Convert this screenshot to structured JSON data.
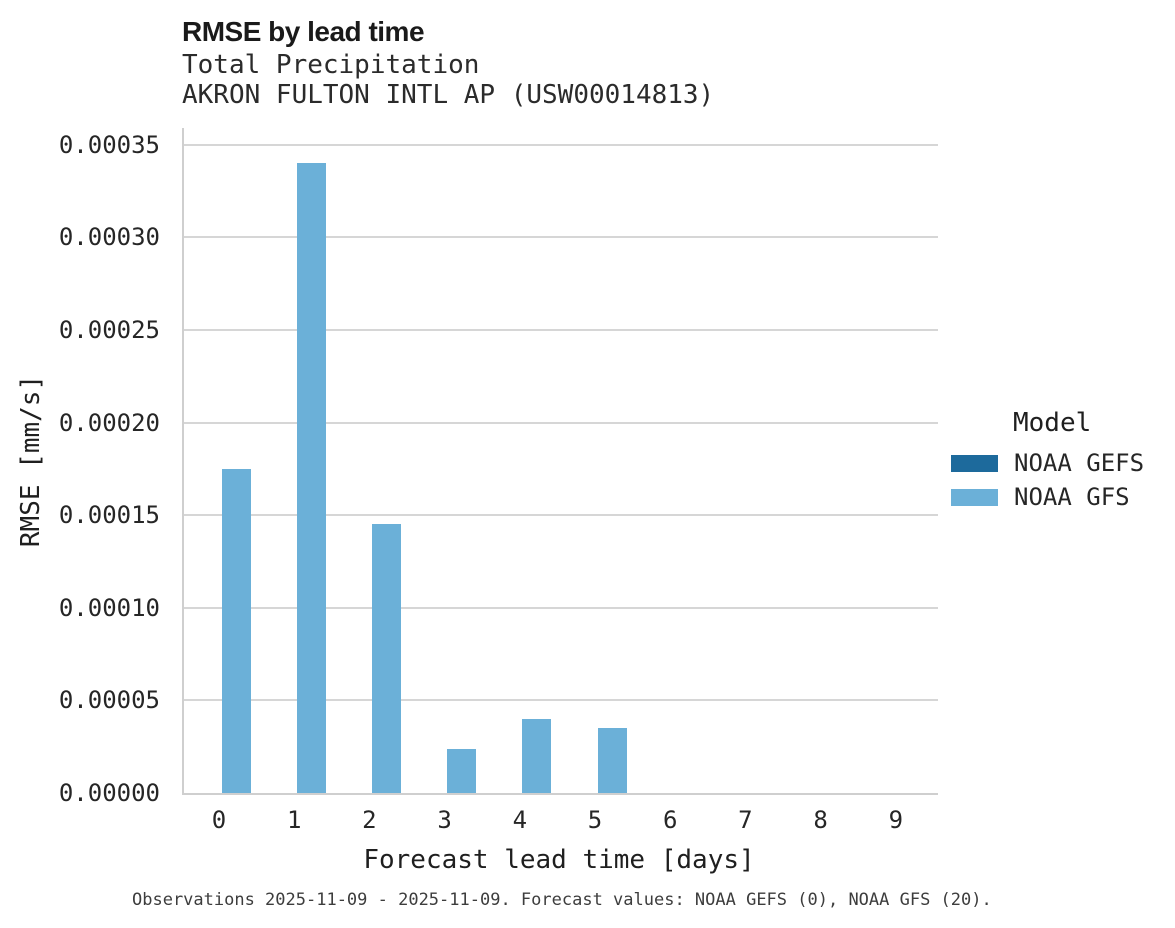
{
  "header": {
    "title": "RMSE by lead time",
    "subtitle1": "Total Precipitation",
    "subtitle2": "AKRON FULTON INTL AP (USW00014813)"
  },
  "caption": "Observations 2025-11-09 - 2025-11-09. Forecast values: NOAA GEFS (0), NOAA GFS (20).",
  "legend": {
    "title": "Model",
    "entries": [
      {
        "label": "NOAA GEFS",
        "color": "#1d6a9c"
      },
      {
        "label": "NOAA GFS",
        "color": "#6bb0d8"
      }
    ]
  },
  "colors": {
    "gefs": "#1d6a9c",
    "gfs": "#6bb0d8",
    "grid": "#d6d6d6",
    "spine": "#cfcfcf"
  },
  "chart_data": {
    "type": "bar",
    "title": "RMSE by lead time",
    "subtitle": "Total Precipitation",
    "station": "AKRON FULTON INTL AP (USW00014813)",
    "xlabel": "Forecast lead time [days]",
    "ylabel": "RMSE [mm/s]",
    "categories": [
      "0",
      "1",
      "2",
      "3",
      "4",
      "5",
      "6",
      "7",
      "8",
      "9"
    ],
    "series": [
      {
        "name": "NOAA GEFS",
        "color": "#1d6a9c",
        "values": [
          null,
          null,
          null,
          null,
          null,
          null,
          null,
          null,
          null,
          null
        ]
      },
      {
        "name": "NOAA GFS",
        "color": "#6bb0d8",
        "values": [
          0.000175,
          0.00034,
          0.000145,
          2.4e-05,
          4e-05,
          3.5e-05,
          null,
          null,
          null,
          null
        ]
      }
    ],
    "ylim": [
      0,
      0.000359
    ],
    "yticks": [
      {
        "value": 0.0,
        "label": "0.00000"
      },
      {
        "value": 5e-05,
        "label": "0.00005"
      },
      {
        "value": 0.0001,
        "label": "0.00010"
      },
      {
        "value": 0.00015,
        "label": "0.00015"
      },
      {
        "value": 0.0002,
        "label": "0.00020"
      },
      {
        "value": 0.00025,
        "label": "0.00025"
      },
      {
        "value": 0.0003,
        "label": "0.00030"
      },
      {
        "value": 0.00035,
        "label": "0.00035"
      }
    ],
    "grid": true,
    "legend_title": "Model",
    "legend_position": "right"
  }
}
